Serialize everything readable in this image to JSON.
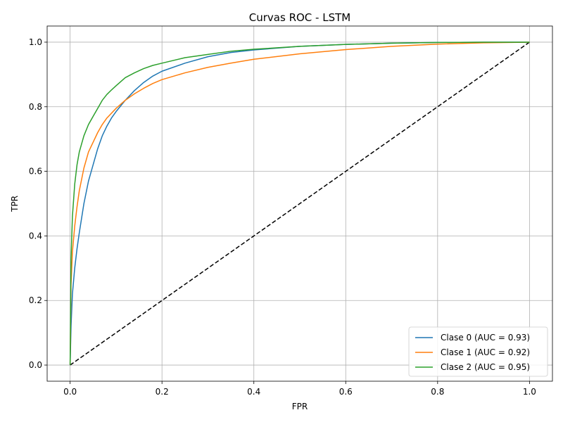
{
  "chart_data": {
    "type": "line",
    "title": "Curvas ROC - LSTM",
    "xlabel": "FPR",
    "ylabel": "TPR",
    "xlim": [
      -0.05,
      1.05
    ],
    "ylim": [
      -0.05,
      1.05
    ],
    "xticks": [
      0.0,
      0.2,
      0.4,
      0.6,
      0.8,
      1.0
    ],
    "xtick_labels": [
      "0.0",
      "0.2",
      "0.4",
      "0.6",
      "0.8",
      "1.0"
    ],
    "yticks": [
      0.0,
      0.2,
      0.4,
      0.6,
      0.8,
      1.0
    ],
    "ytick_labels": [
      "0.0",
      "0.2",
      "0.4",
      "0.6",
      "0.8",
      "1.0"
    ],
    "grid": true,
    "legend_position": "lower-right",
    "series": [
      {
        "name": "Clase 0 (AUC = 0.93)",
        "color": "#1f77b4",
        "x": [
          0,
          0.002,
          0.005,
          0.01,
          0.015,
          0.02,
          0.03,
          0.04,
          0.05,
          0.06,
          0.07,
          0.08,
          0.09,
          0.1,
          0.12,
          0.14,
          0.16,
          0.18,
          0.2,
          0.25,
          0.3,
          0.35,
          0.4,
          0.5,
          0.6,
          0.7,
          0.8,
          0.9,
          1.0
        ],
        "y": [
          0,
          0.12,
          0.22,
          0.3,
          0.36,
          0.41,
          0.5,
          0.57,
          0.62,
          0.67,
          0.71,
          0.74,
          0.765,
          0.785,
          0.82,
          0.85,
          0.875,
          0.895,
          0.91,
          0.935,
          0.955,
          0.968,
          0.976,
          0.987,
          0.993,
          0.997,
          0.999,
          1.0,
          1.0
        ]
      },
      {
        "name": "Clase 1 (AUC = 0.92)",
        "color": "#ff7f0e",
        "x": [
          0,
          0.002,
          0.005,
          0.01,
          0.015,
          0.02,
          0.03,
          0.04,
          0.05,
          0.06,
          0.07,
          0.08,
          0.1,
          0.12,
          0.14,
          0.16,
          0.18,
          0.2,
          0.25,
          0.3,
          0.35,
          0.4,
          0.5,
          0.6,
          0.7,
          0.8,
          0.9,
          1.0
        ],
        "y": [
          0,
          0.25,
          0.35,
          0.43,
          0.49,
          0.54,
          0.61,
          0.66,
          0.69,
          0.72,
          0.745,
          0.765,
          0.795,
          0.82,
          0.84,
          0.857,
          0.872,
          0.884,
          0.905,
          0.922,
          0.935,
          0.947,
          0.964,
          0.977,
          0.987,
          0.994,
          0.998,
          1.0
        ]
      },
      {
        "name": "Clase 2 (AUC = 0.95)",
        "color": "#2ca02c",
        "x": [
          0,
          0.002,
          0.005,
          0.01,
          0.015,
          0.02,
          0.03,
          0.04,
          0.05,
          0.06,
          0.07,
          0.08,
          0.09,
          0.1,
          0.12,
          0.14,
          0.16,
          0.18,
          0.2,
          0.25,
          0.3,
          0.35,
          0.4,
          0.5,
          0.6,
          0.7,
          0.8,
          0.9,
          1.0
        ],
        "y": [
          0,
          0.33,
          0.46,
          0.56,
          0.62,
          0.66,
          0.71,
          0.745,
          0.77,
          0.795,
          0.82,
          0.838,
          0.852,
          0.865,
          0.89,
          0.905,
          0.918,
          0.928,
          0.935,
          0.952,
          0.962,
          0.972,
          0.978,
          0.987,
          0.993,
          0.997,
          0.999,
          1.0,
          1.0
        ]
      }
    ],
    "reference_line": {
      "x": [
        0,
        1
      ],
      "y": [
        0,
        1
      ],
      "color": "#000000",
      "style": "dashed"
    }
  }
}
